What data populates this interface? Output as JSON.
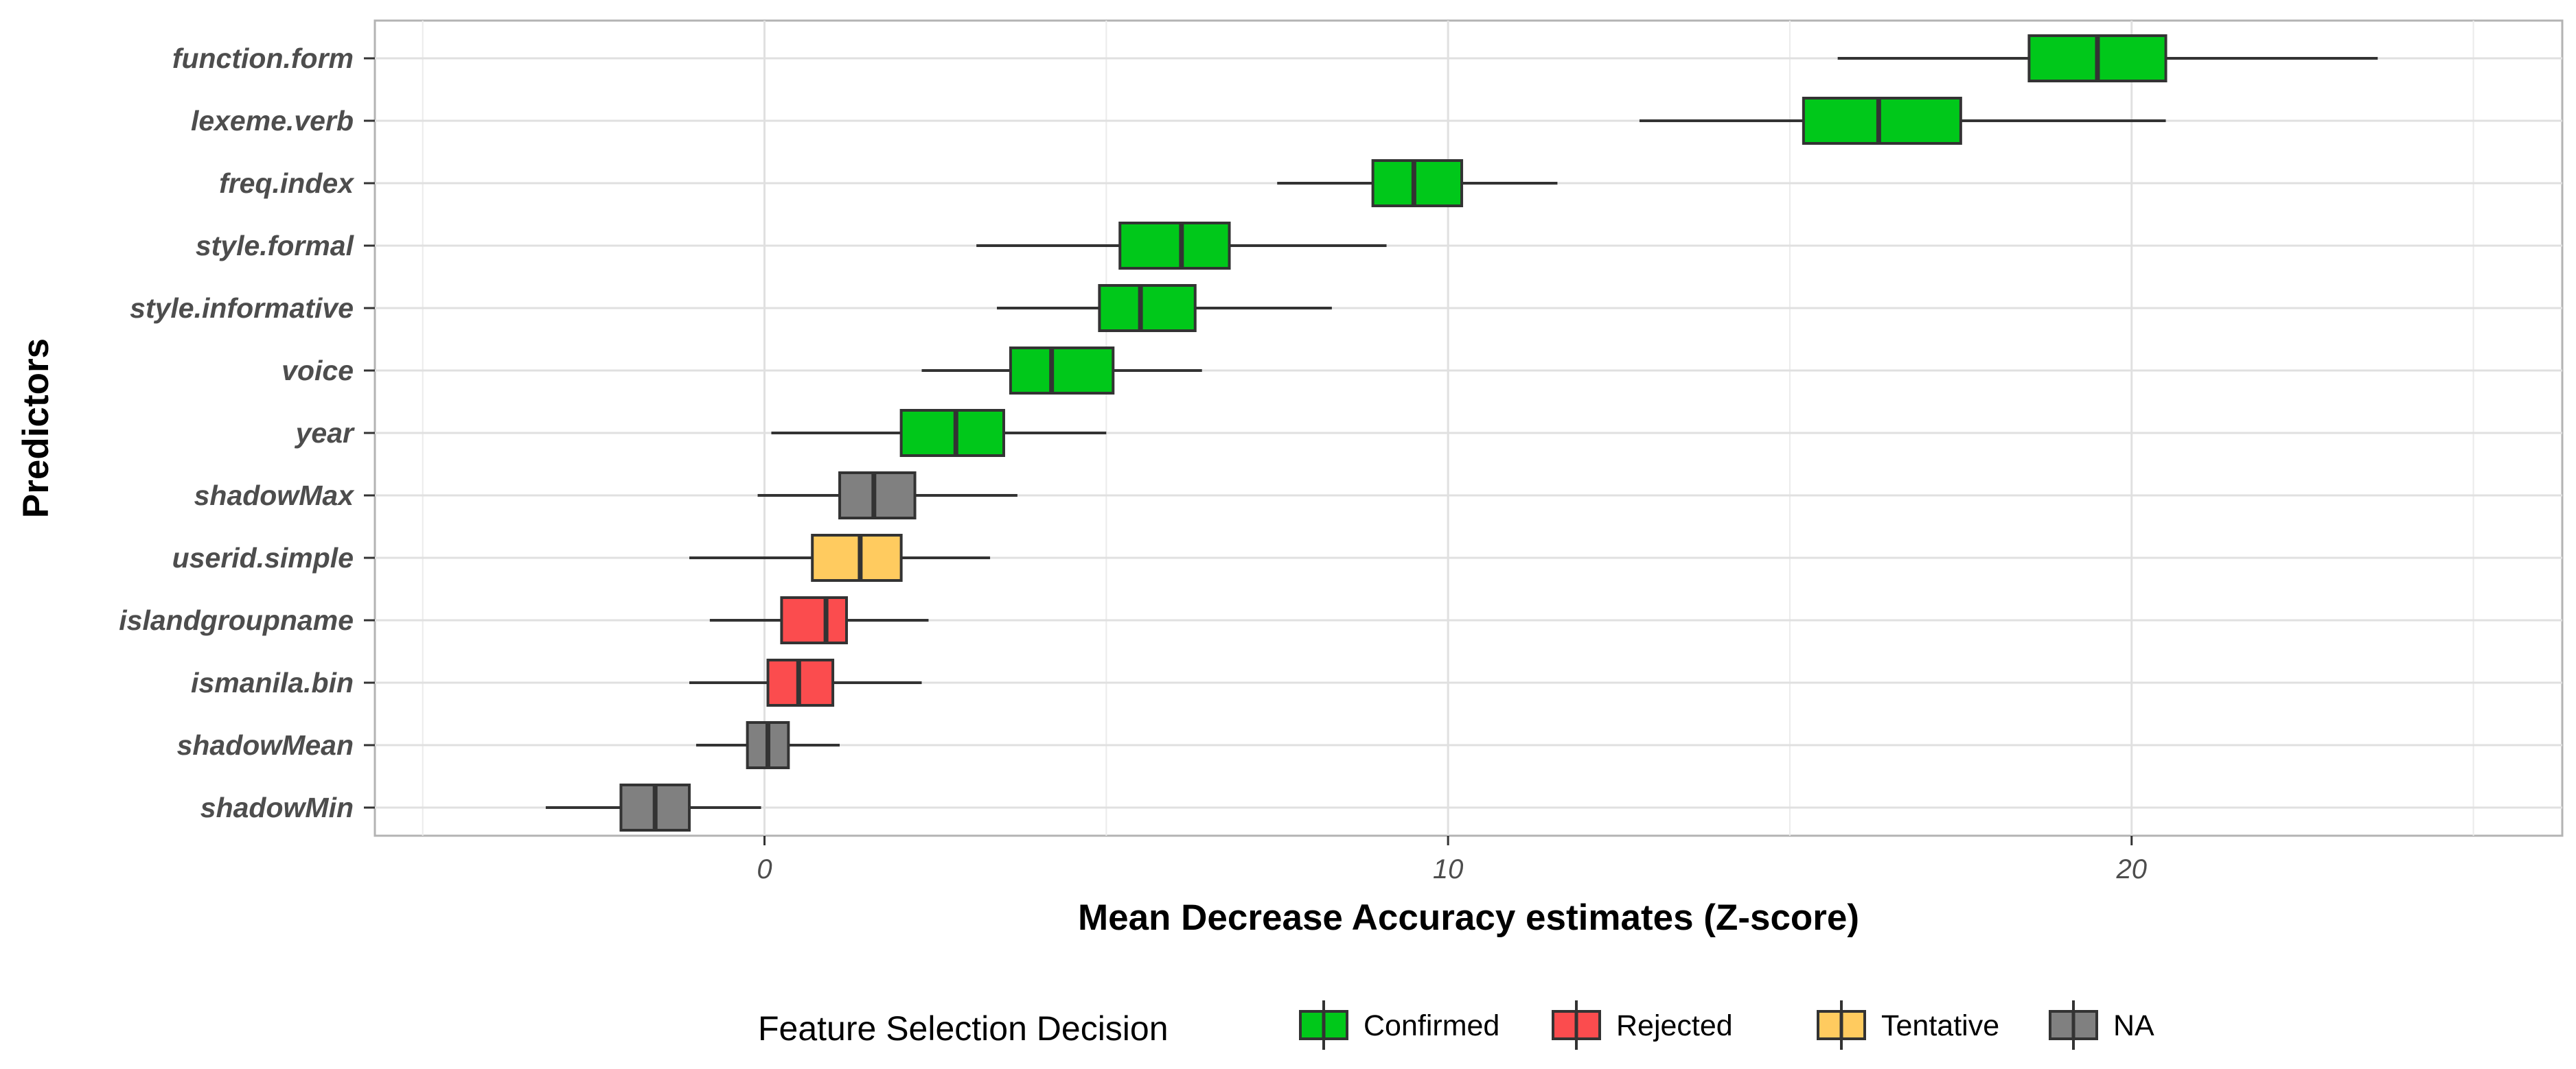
{
  "chart_data": {
    "type": "boxplot",
    "title": "",
    "xlabel": "Mean Decrease Accuracy estimates (Z-score)",
    "ylabel": "Predictors",
    "xlim": [
      -5.7,
      26.3
    ],
    "xticks": [
      0,
      10,
      20
    ],
    "grid": true,
    "legend_title": "Feature Selection Decision",
    "legend_position": "bottom",
    "categories": [
      {
        "key": "Confirmed",
        "label": "Confirmed",
        "color": "#00c81a"
      },
      {
        "key": "Rejected",
        "label": "Rejected",
        "color": "#fb4c4e"
      },
      {
        "key": "Tentative",
        "label": "Tentative",
        "color": "#ffcb5f"
      },
      {
        "key": "NA",
        "label": "NA",
        "color": "#808080"
      }
    ],
    "predictors": [
      {
        "name": "function.form",
        "decision": "Confirmed",
        "min": 15.7,
        "q1": 18.5,
        "median": 19.5,
        "q3": 20.5,
        "max": 23.6
      },
      {
        "name": "lexeme.verb",
        "decision": "Confirmed",
        "min": 12.8,
        "q1": 15.2,
        "median": 16.3,
        "q3": 17.5,
        "max": 20.5
      },
      {
        "name": "freq.index",
        "decision": "Confirmed",
        "min": 7.5,
        "q1": 8.9,
        "median": 9.5,
        "q3": 10.2,
        "max": 11.6
      },
      {
        "name": "style.formal",
        "decision": "Confirmed",
        "min": 3.1,
        "q1": 5.2,
        "median": 6.1,
        "q3": 6.8,
        "max": 9.1
      },
      {
        "name": "style.informative",
        "decision": "Confirmed",
        "min": 3.4,
        "q1": 4.9,
        "median": 5.5,
        "q3": 6.3,
        "max": 8.3
      },
      {
        "name": "voice",
        "decision": "Confirmed",
        "min": 2.3,
        "q1": 3.6,
        "median": 4.2,
        "q3": 5.1,
        "max": 6.4
      },
      {
        "name": "year",
        "decision": "Confirmed",
        "min": 0.1,
        "q1": 2.0,
        "median": 2.8,
        "q3": 3.5,
        "max": 5.0
      },
      {
        "name": "shadowMax",
        "decision": "NA",
        "min": -0.1,
        "q1": 1.1,
        "median": 1.6,
        "q3": 2.2,
        "max": 3.7
      },
      {
        "name": "userid.simple",
        "decision": "Tentative",
        "min": -1.1,
        "q1": 0.7,
        "median": 1.4,
        "q3": 2.0,
        "max": 3.3
      },
      {
        "name": "islandgroupname",
        "decision": "Rejected",
        "min": -0.8,
        "q1": 0.25,
        "median": 0.9,
        "q3": 1.2,
        "max": 2.4
      },
      {
        "name": "ismanila.bin",
        "decision": "Rejected",
        "min": -1.1,
        "q1": 0.05,
        "median": 0.5,
        "q3": 1.0,
        "max": 2.3
      },
      {
        "name": "shadowMean",
        "decision": "NA",
        "min": -1.0,
        "q1": -0.25,
        "median": 0.05,
        "q3": 0.35,
        "max": 1.1
      },
      {
        "name": "shadowMin",
        "decision": "NA",
        "min": -3.2,
        "q1": -2.1,
        "median": -1.6,
        "q3": -1.1,
        "max": -0.05
      }
    ]
  }
}
